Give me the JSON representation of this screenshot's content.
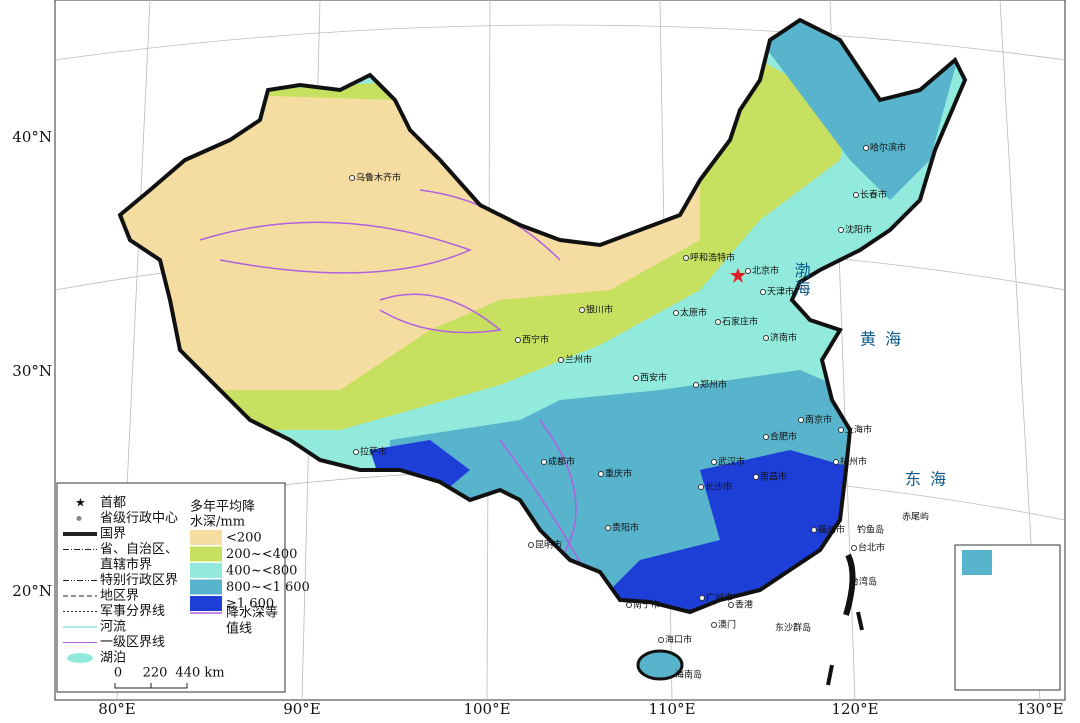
{
  "map": {
    "lat_labels": [
      "40°N",
      "30°N",
      "20°N"
    ],
    "lon_labels": [
      "80°E",
      "90°E",
      "100°E",
      "110°E",
      "120°E",
      "130°E"
    ],
    "cities": [
      "乌鲁木齐市",
      "呼和浩特市",
      "北京市",
      "天津市",
      "石家庄市",
      "太原市",
      "银川市",
      "西宁市",
      "兰州市",
      "济南市",
      "西安市",
      "郑州市",
      "南京市",
      "上海市",
      "合肥市",
      "武汉市",
      "杭州市",
      "成都市",
      "重庆市",
      "长沙市",
      "南昌市",
      "贵阳市",
      "昆明市",
      "福州市",
      "台北市",
      "广州市",
      "香港",
      "澳门",
      "南宁市",
      "海口市",
      "拉萨市",
      "哈尔滨市",
      "长春市",
      "沈阳市"
    ],
    "seas": [
      "渤海",
      "黄 海",
      "东 海"
    ],
    "islands": [
      "钓鱼岛",
      "赤尾屿",
      "台湾岛",
      "东沙群岛",
      "海南岛"
    ],
    "legend": {
      "symbols": [
        [
          "首都"
        ],
        [
          "省级行政中心"
        ],
        [
          "国界"
        ],
        [
          "省、自治区、",
          "直辖市界"
        ],
        [
          "特别行政区界"
        ],
        [
          "地区界"
        ],
        [
          "军事分界线"
        ],
        [
          "河流"
        ],
        [
          "一级区界线"
        ],
        [
          "湖泊"
        ]
      ],
      "title_lines": [
        "多年平均降",
        "水深/mm"
      ],
      "classes": [
        {
          "label": "<200",
          "color": "#f5dca0"
        },
        {
          "label": "200~<400",
          "color": "#c8e060"
        },
        {
          "label": "400~<800",
          "color": "#92eadc"
        },
        {
          "label": "800~<1 600",
          "color": "#58b4cc"
        },
        {
          "label": "≥1 600",
          "color": "#1e3ed8"
        }
      ],
      "isoline_lines": [
        "降水深等",
        "值线"
      ],
      "isoline_color": "#b060e0",
      "scale_labels": [
        "0",
        "220",
        "440 km"
      ]
    }
  }
}
